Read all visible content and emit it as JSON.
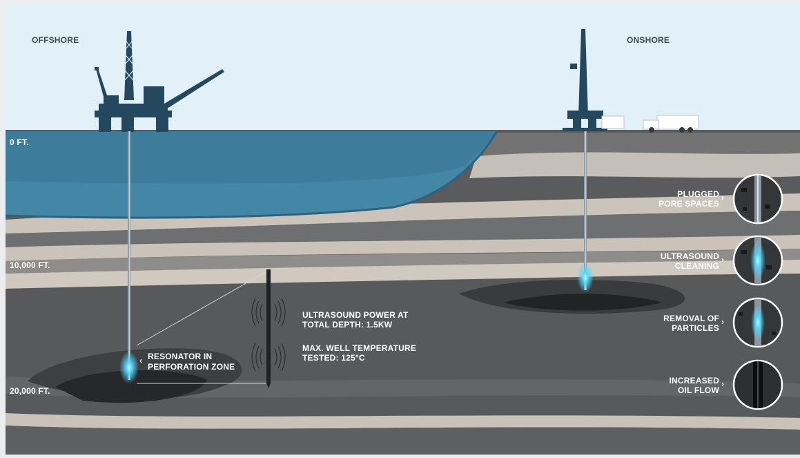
{
  "headers": {
    "offshore": "OFFSHORE",
    "onshore": "ONSHORE"
  },
  "depths": {
    "zero": "0 FT.",
    "ten_thousand": "10,000 FT.",
    "twenty_thousand": "20,000 FT."
  },
  "resonator": {
    "line1": "RESONATOR IN",
    "line2": "PERFORATION ZONE"
  },
  "specs": {
    "power_line1": "ULTRASOUND POWER AT",
    "power_line2": "TOTAL DEPTH: 1.5KW",
    "temp_line1": "MAX. WELL TEMPERATURE",
    "temp_line2": "TESTED: 125°C"
  },
  "stages": [
    {
      "line1": "PLUGGED",
      "line2": "PORE SPACES"
    },
    {
      "line1": "ULTRASOUND",
      "line2": "CLEANING"
    },
    {
      "line1": "REMOVAL OF",
      "line2": "PARTICLES"
    },
    {
      "line1": "INCREASED",
      "line2": "OIL FLOW"
    }
  ],
  "colors": {
    "sky": "#e2f1f7",
    "sea": "#3f7a98",
    "rock_dark": "#56585a",
    "rock_light": "#c9c4bb",
    "glow": "#4fd8ff",
    "structure": "#244a63"
  }
}
